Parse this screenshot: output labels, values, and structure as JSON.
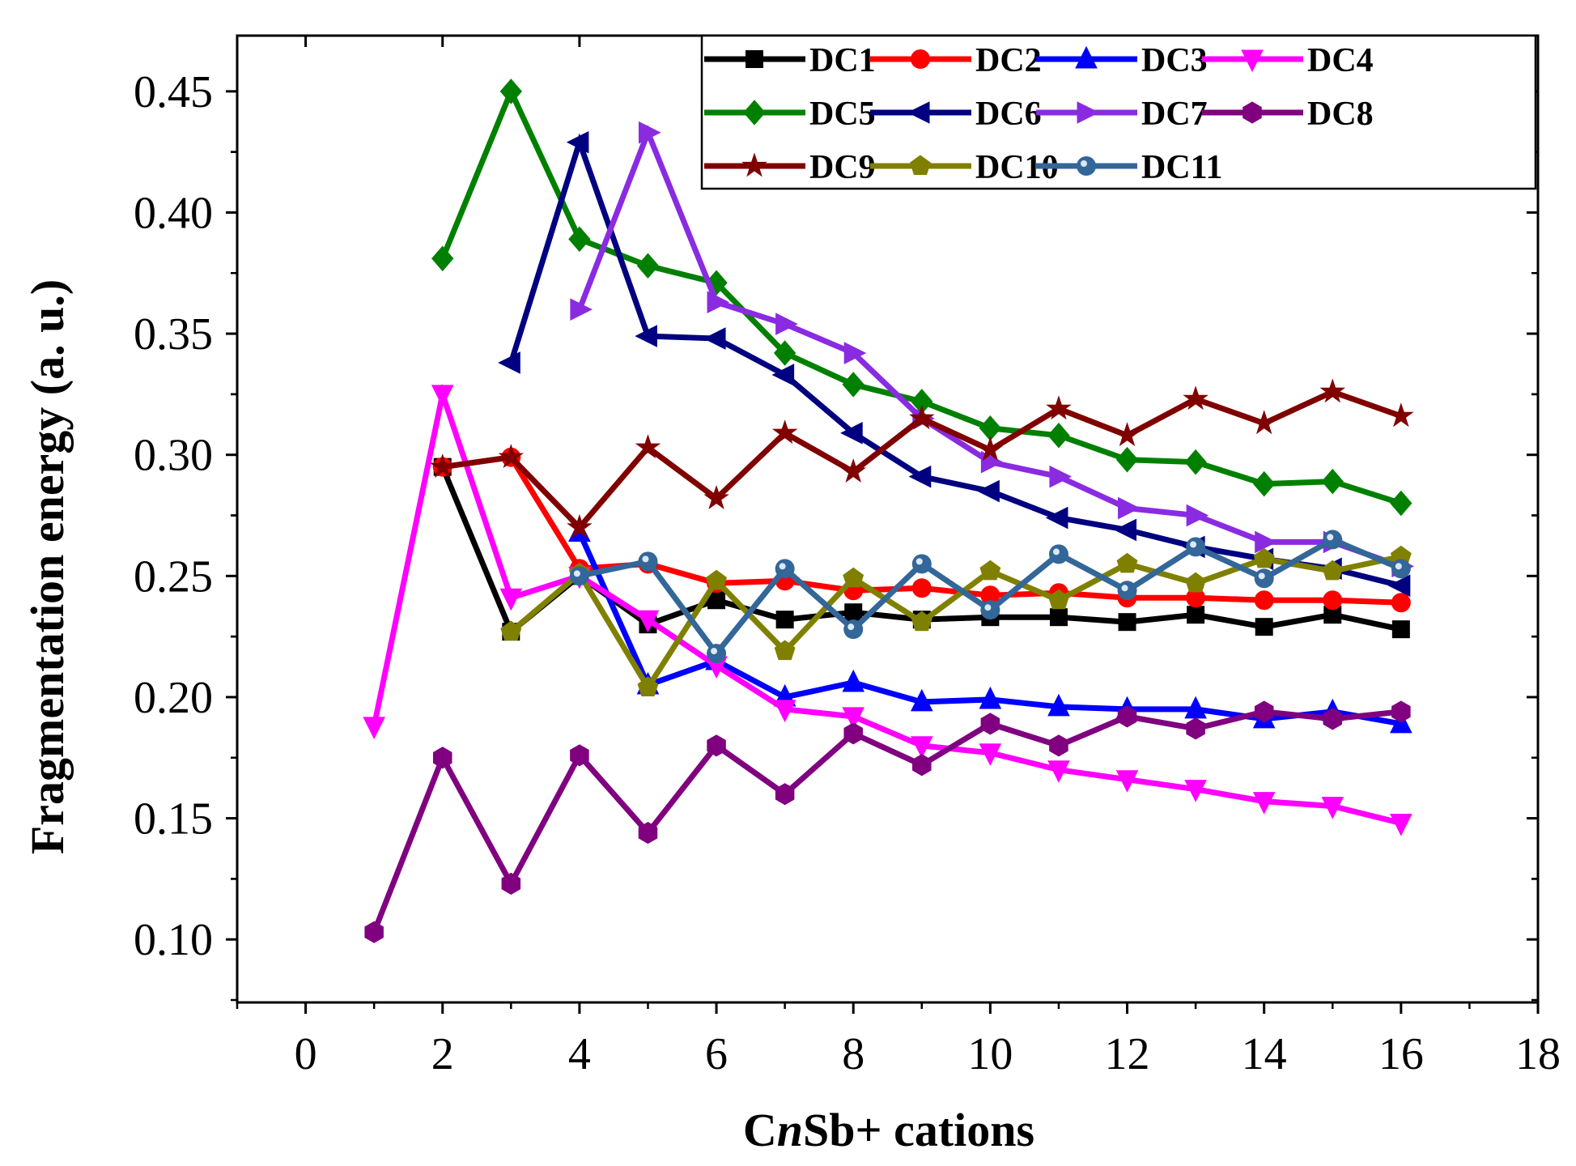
{
  "chart_data": {
    "type": "line",
    "title": "",
    "xlabel_parts": [
      "C",
      "n",
      "Sb+ cations"
    ],
    "xlabel": "CnSb+ cations",
    "ylabel": "Fragmentation energy (a. u.)",
    "xlim": [
      -1,
      18
    ],
    "ylim": [
      0.074,
      0.473
    ],
    "xticks": [
      0,
      2,
      4,
      6,
      8,
      10,
      12,
      14,
      16,
      18
    ],
    "yticks": [
      "0.10",
      "0.15",
      "0.20",
      "0.25",
      "0.30",
      "0.35",
      "0.40",
      "0.45"
    ],
    "grid": false,
    "legend_position": "top-right",
    "series": [
      {
        "name": "DC1",
        "color": "#000000",
        "marker": "square",
        "x": [
          2,
          3,
          4,
          5,
          6,
          7,
          8,
          9,
          10,
          11,
          12,
          13,
          14,
          15,
          16
        ],
        "values": [
          0.295,
          0.227,
          0.25,
          0.23,
          0.24,
          0.232,
          0.235,
          0.232,
          0.233,
          0.233,
          0.231,
          0.234,
          0.229,
          0.234,
          0.228
        ]
      },
      {
        "name": "DC2",
        "color": "#ff0000",
        "marker": "circle",
        "x": [
          2,
          3,
          4,
          5,
          6,
          7,
          8,
          9,
          10,
          11,
          12,
          13,
          14,
          15,
          16
        ],
        "values": [
          0.295,
          0.299,
          0.253,
          0.255,
          0.247,
          0.248,
          0.244,
          0.245,
          0.242,
          0.243,
          0.241,
          0.241,
          0.24,
          0.24,
          0.239
        ]
      },
      {
        "name": "DC3",
        "color": "#0000ff",
        "marker": "triangle-up",
        "x": [
          4,
          5,
          6,
          7,
          8,
          9,
          10,
          11,
          12,
          13,
          14,
          15,
          16
        ],
        "values": [
          0.268,
          0.205,
          0.215,
          0.2,
          0.206,
          0.198,
          0.199,
          0.196,
          0.195,
          0.195,
          0.191,
          0.194,
          0.189
        ]
      },
      {
        "name": "DC4",
        "color": "#ff00ff",
        "marker": "triangle-down",
        "x": [
          1,
          2,
          3,
          4,
          5,
          6,
          7,
          8,
          9,
          10,
          11,
          12,
          13,
          14,
          15,
          16
        ],
        "values": [
          0.188,
          0.325,
          0.241,
          0.25,
          0.232,
          0.213,
          0.195,
          0.192,
          0.18,
          0.177,
          0.17,
          0.166,
          0.162,
          0.157,
          0.155,
          0.148
        ]
      },
      {
        "name": "DC5",
        "color": "#008000",
        "marker": "diamond",
        "x": [
          2,
          3,
          4,
          5,
          6,
          7,
          8,
          9,
          10,
          11,
          12,
          13,
          14,
          15,
          16
        ],
        "values": [
          0.381,
          0.45,
          0.389,
          0.378,
          0.371,
          0.342,
          0.329,
          0.322,
          0.311,
          0.308,
          0.298,
          0.297,
          0.288,
          0.289,
          0.28
        ]
      },
      {
        "name": "DC6",
        "color": "#000080",
        "marker": "triangle-left",
        "x": [
          3,
          4,
          5,
          6,
          7,
          8,
          9,
          10,
          11,
          12,
          13,
          14,
          15,
          16
        ],
        "values": [
          0.338,
          0.429,
          0.349,
          0.348,
          0.333,
          0.309,
          0.291,
          0.285,
          0.274,
          0.269,
          0.262,
          0.257,
          0.253,
          0.246
        ]
      },
      {
        "name": "DC7",
        "color": "#8a2be2",
        "marker": "triangle-right",
        "x": [
          4,
          5,
          6,
          7,
          8,
          9,
          10,
          11,
          12,
          13,
          14,
          15,
          16
        ],
        "values": [
          0.36,
          0.433,
          0.363,
          0.354,
          0.342,
          0.315,
          0.297,
          0.291,
          0.278,
          0.275,
          0.264,
          0.264,
          0.254
        ]
      },
      {
        "name": "DC8",
        "color": "#800080",
        "marker": "hexagon",
        "x": [
          1,
          2,
          3,
          4,
          5,
          6,
          7,
          8,
          9,
          10,
          11,
          12,
          13,
          14,
          15,
          16
        ],
        "values": [
          0.103,
          0.175,
          0.123,
          0.176,
          0.144,
          0.18,
          0.16,
          0.185,
          0.172,
          0.189,
          0.18,
          0.192,
          0.187,
          0.194,
          0.191,
          0.194
        ]
      },
      {
        "name": "DC9",
        "color": "#800000",
        "marker": "star",
        "x": [
          2,
          3,
          4,
          5,
          6,
          7,
          8,
          9,
          10,
          11,
          12,
          13,
          14,
          15,
          16
        ],
        "values": [
          0.295,
          0.299,
          0.27,
          0.303,
          0.282,
          0.309,
          0.293,
          0.315,
          0.302,
          0.319,
          0.308,
          0.323,
          0.313,
          0.326,
          0.316
        ]
      },
      {
        "name": "DC10",
        "color": "#808000",
        "marker": "pentagon",
        "x": [
          3,
          4,
          5,
          6,
          7,
          8,
          9,
          10,
          11,
          12,
          13,
          14,
          15,
          16
        ],
        "values": [
          0.227,
          0.251,
          0.204,
          0.248,
          0.219,
          0.249,
          0.231,
          0.252,
          0.24,
          0.255,
          0.247,
          0.257,
          0.252,
          0.258
        ]
      },
      {
        "name": "DC11",
        "color": "#336699",
        "marker": "sphere",
        "x": [
          4,
          5,
          6,
          7,
          8,
          9,
          10,
          11,
          12,
          13,
          14,
          15,
          16
        ],
        "values": [
          0.25,
          0.256,
          0.218,
          0.253,
          0.228,
          0.255,
          0.236,
          0.259,
          0.244,
          0.262,
          0.249,
          0.265,
          0.253
        ]
      }
    ]
  }
}
